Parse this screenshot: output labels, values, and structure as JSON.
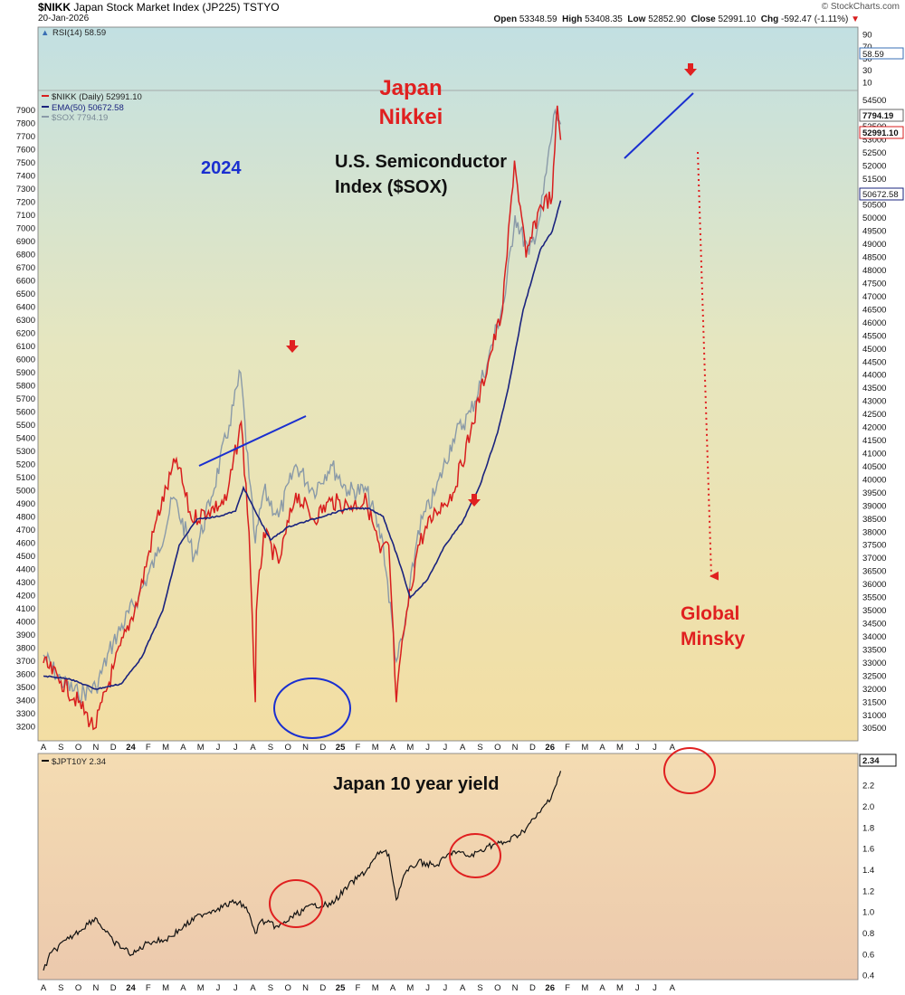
{
  "header": {
    "symbol": "$NIKK",
    "name": "Japan Stock Market Index (JP225)  TSTYO",
    "date": "20-Jan-2026",
    "credit": "© StockCharts.com",
    "open_label": "Open",
    "open": "53348.59",
    "high_label": "High",
    "high": "53408.35",
    "low_label": "Low",
    "low": "52852.90",
    "close_label": "Close",
    "close": "52991.10",
    "chg_label": "Chg",
    "chg": "-592.47 (-1.11%)"
  },
  "colors": {
    "nikkei": "#d81e1e",
    "ema": "#1a237e",
    "sox": "#8a9aa8",
    "annot_red": "#e02020",
    "annot_blue": "#1a2fd0",
    "jgb": "#111111"
  },
  "chart_data": [
    {
      "type": "line",
      "title": "RSI(14) 58.59",
      "y_ticks": [
        90,
        70,
        50,
        30,
        10
      ],
      "ylim": [
        0,
        100
      ],
      "last_label": "58.59"
    },
    {
      "type": "line",
      "x_ticks": [
        "A",
        "S",
        "O",
        "N",
        "D",
        "24",
        "F",
        "M",
        "A",
        "M",
        "J",
        "J",
        "A",
        "S",
        "O",
        "N",
        "D",
        "25",
        "F",
        "M",
        "A",
        "M",
        "J",
        "J",
        "A",
        "S",
        "O",
        "N",
        "D",
        "26",
        "F",
        "M",
        "A",
        "M",
        "J",
        "J",
        "A"
      ],
      "series": [
        {
          "name": "$NIKK (Daily) 52991.10",
          "axis": "right",
          "x": [
            "2023-08-01",
            "2023-09-01",
            "2023-10-01",
            "2023-10-30",
            "2023-12-01",
            "2024-01-15",
            "2024-02-15",
            "2024-03-20",
            "2024-04-15",
            "2024-05-15",
            "2024-06-15",
            "2024-07-11",
            "2024-07-25",
            "2024-08-05",
            "2024-08-07",
            "2024-08-20",
            "2024-09-15",
            "2024-10-15",
            "2024-11-15",
            "2024-12-15",
            "2025-01-15",
            "2025-02-15",
            "2025-03-10",
            "2025-03-25",
            "2025-04-07",
            "2025-04-20",
            "2025-05-15",
            "2025-06-15",
            "2025-07-15",
            "2025-08-15",
            "2025-09-15",
            "2025-10-10",
            "2025-10-31",
            "2025-11-20",
            "2025-12-15",
            "2026-01-05",
            "2026-01-14",
            "2026-01-20"
          ],
          "values": [
            33000,
            32300,
            31500,
            30500,
            32800,
            35500,
            38500,
            40800,
            38500,
            38800,
            39200,
            42200,
            38000,
            31500,
            35000,
            38000,
            36800,
            39500,
            38500,
            39200,
            39000,
            39200,
            37200,
            37500,
            31500,
            34200,
            37500,
            38800,
            39500,
            41800,
            44500,
            46500,
            52200,
            48500,
            50500,
            50800,
            54300,
            52991
          ]
        },
        {
          "name": "EMA(50) 50672.58",
          "axis": "right",
          "x": [
            "2023-08-01",
            "2023-09-15",
            "2023-11-01",
            "2023-12-15",
            "2024-01-20",
            "2024-02-25",
            "2024-03-25",
            "2024-04-25",
            "2024-06-01",
            "2024-07-01",
            "2024-07-15",
            "2024-08-05",
            "2024-09-01",
            "2024-10-01",
            "2024-11-15",
            "2025-01-15",
            "2025-02-20",
            "2025-03-15",
            "2025-04-10",
            "2025-05-01",
            "2025-06-01",
            "2025-07-01",
            "2025-08-01",
            "2025-09-01",
            "2025-10-01",
            "2025-10-20",
            "2025-11-15",
            "2025-12-15",
            "2026-01-05",
            "2026-01-20"
          ],
          "values": [
            32500,
            32400,
            32000,
            32200,
            33200,
            35000,
            37500,
            38500,
            38600,
            38800,
            39700,
            38800,
            37700,
            38200,
            38500,
            38900,
            38900,
            38600,
            37000,
            35500,
            36200,
            37500,
            38400,
            39800,
            41800,
            43500,
            46500,
            48800,
            49500,
            50672
          ]
        },
        {
          "name": "$SOX 7794.19",
          "axis": "left",
          "x": [
            "2023-08-01",
            "2023-09-01",
            "2023-10-01",
            "2023-11-01",
            "2023-12-01",
            "2024-01-15",
            "2024-02-15",
            "2024-03-15",
            "2024-04-20",
            "2024-05-20",
            "2024-06-20",
            "2024-07-10",
            "2024-07-25",
            "2024-08-05",
            "2024-08-20",
            "2024-09-15",
            "2024-10-15",
            "2024-11-15",
            "2024-12-15",
            "2025-01-15",
            "2025-02-15",
            "2025-03-15",
            "2025-04-07",
            "2025-04-20",
            "2025-05-15",
            "2025-06-15",
            "2025-07-15",
            "2025-08-15",
            "2025-09-15",
            "2025-10-15",
            "2025-11-01",
            "2025-11-25",
            "2025-12-15",
            "2026-01-10",
            "2026-01-20"
          ],
          "values": [
            3750,
            3550,
            3450,
            3500,
            3850,
            4200,
            4500,
            4950,
            4500,
            4950,
            5500,
            5900,
            5100,
            4600,
            5000,
            4800,
            5200,
            5000,
            5200,
            5000,
            5000,
            4600,
            3700,
            3900,
            4700,
            5000,
            5400,
            5600,
            6000,
            6500,
            7100,
            6800,
            7100,
            7900,
            7794
          ]
        }
      ],
      "left_ticks": [
        7900,
        7800,
        7700,
        7600,
        7500,
        7400,
        7300,
        7200,
        7100,
        7000,
        6900,
        6800,
        6700,
        6600,
        6500,
        6400,
        6300,
        6200,
        6100,
        6000,
        5900,
        5800,
        5700,
        5600,
        5500,
        5400,
        5300,
        5200,
        5100,
        5000,
        4900,
        4800,
        4700,
        4600,
        4500,
        4400,
        4300,
        4200,
        4100,
        4000,
        3900,
        3800,
        3700,
        3600,
        3500,
        3400,
        3300,
        3200
      ],
      "right_ticks": [
        54500,
        54000,
        53500,
        53000,
        52500,
        52000,
        51500,
        51000,
        50500,
        50000,
        49500,
        49000,
        48500,
        48000,
        47500,
        47000,
        46500,
        46000,
        45500,
        45000,
        44500,
        44000,
        43500,
        43000,
        42500,
        42000,
        41500,
        41000,
        40500,
        40000,
        39500,
        39000,
        38500,
        38000,
        37500,
        37000,
        36500,
        36000,
        35500,
        35000,
        34500,
        34000,
        33500,
        33000,
        32500,
        32000,
        31500,
        31000,
        30500
      ],
      "ylim_left": [
        3150,
        7990
      ],
      "ylim_right": [
        30300,
        54570
      ],
      "last_labels": {
        "sox": "7794.19",
        "nikkei": "52991.10",
        "ema": "50672.58"
      },
      "annotations": [
        "Japan",
        "Nikkei",
        "2024",
        "U.S. Semiconductor",
        "Index ($SOX)",
        "Global",
        "Minsky"
      ]
    },
    {
      "type": "line",
      "series": [
        {
          "name": "$JPT10Y 2.34",
          "x": [
            "2023-08-01",
            "2023-08-15",
            "2023-09-15",
            "2023-10-31",
            "2023-12-01",
            "2024-01-05",
            "2024-02-01",
            "2024-03-01",
            "2024-04-01",
            "2024-05-01",
            "2024-06-01",
            "2024-07-01",
            "2024-07-20",
            "2024-08-05",
            "2024-08-15",
            "2024-09-15",
            "2024-10-15",
            "2024-11-15",
            "2024-12-15",
            "2025-01-15",
            "2025-02-15",
            "2025-03-10",
            "2025-03-25",
            "2025-04-07",
            "2025-04-20",
            "2025-05-15",
            "2025-06-15",
            "2025-07-15",
            "2025-08-15",
            "2025-09-15",
            "2025-10-15",
            "2025-11-15",
            "2025-12-15",
            "2026-01-05",
            "2026-01-20"
          ],
          "values": [
            0.45,
            0.62,
            0.75,
            0.95,
            0.72,
            0.6,
            0.72,
            0.74,
            0.86,
            0.98,
            1.04,
            1.1,
            1.05,
            0.8,
            0.92,
            0.86,
            0.98,
            1.07,
            1.07,
            1.25,
            1.4,
            1.58,
            1.55,
            1.12,
            1.35,
            1.48,
            1.44,
            1.58,
            1.53,
            1.63,
            1.66,
            1.77,
            1.95,
            2.12,
            2.34
          ]
        }
      ],
      "y_ticks": [
        2.2,
        2.0,
        1.8,
        1.6,
        1.4,
        1.2,
        1.0,
        0.8,
        0.6,
        0.4
      ],
      "ylim": [
        0.38,
        2.42
      ],
      "last_label": "2.34",
      "annotations": [
        "Japan 10 year yield"
      ]
    }
  ]
}
